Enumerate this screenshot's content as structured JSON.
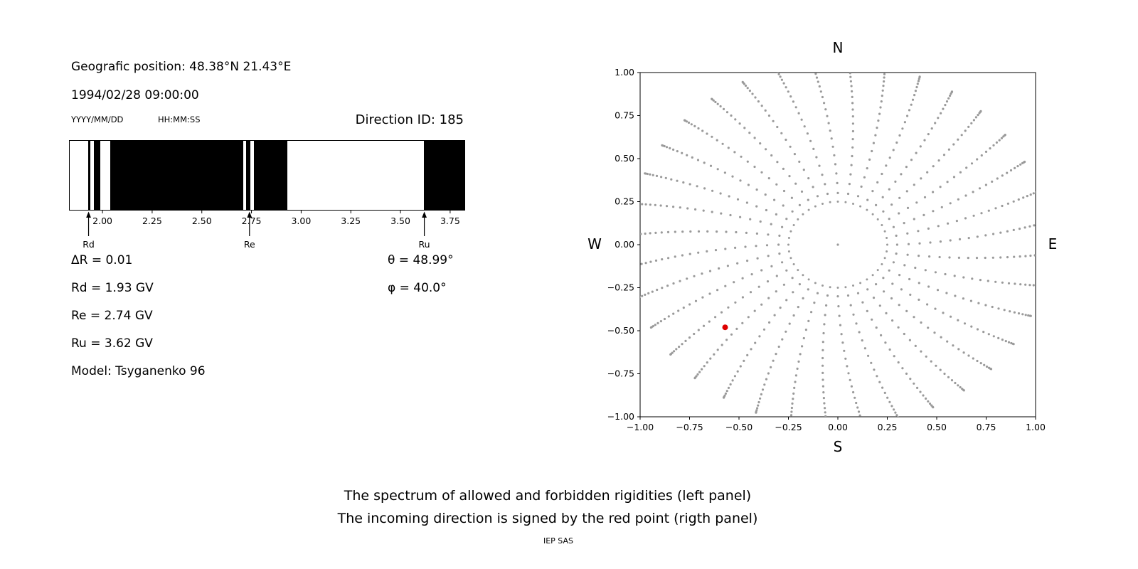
{
  "left_panel": {
    "geo_position": "Geografic position: 48.38°N 21.43°E",
    "datetime": "1994/02/28 09:00:00",
    "date_format_label": "YYYY/MM/DD",
    "time_format_label": "HH:MM:SS",
    "direction_id_label": "Direction ID: 185",
    "delta_r": "ΔR = 0.01",
    "rd": "Rd = 1.93 GV",
    "re": "Re = 2.74 GV",
    "ru": "Ru = 3.62 GV",
    "model": "Model: Tsyganenko 96",
    "theta": "θ = 48.99°",
    "phi": "φ = 40.0°"
  },
  "right_panel": {
    "compass": {
      "north": "N",
      "south": "S",
      "west": "W",
      "east": "E"
    }
  },
  "captions": {
    "line1": "The spectrum of allowed and forbidden rigidities (left panel)",
    "line2": "The incoming direction is signed by the red point (rigth panel)",
    "credit": "IEP SAS"
  },
  "chart_data": [
    {
      "id": "rigidity_spectrum",
      "type": "bar",
      "title": "",
      "xlabel": "",
      "ylabel": "",
      "xlim": [
        1.835,
        3.822
      ],
      "xtick_values": [
        2.0,
        2.25,
        2.5,
        2.75,
        3.0,
        3.25,
        3.5,
        3.75
      ],
      "xtick_labels": [
        "2.00",
        "2.25",
        "2.50",
        "2.75",
        "3.00",
        "3.25",
        "3.50",
        "3.75"
      ],
      "forbidden_bands_gv": [
        [
          1.928,
          1.94
        ],
        [
          1.958,
          1.99
        ],
        [
          2.04,
          2.708
        ],
        [
          2.722,
          2.746
        ],
        [
          2.762,
          2.93
        ],
        [
          3.618,
          3.822
        ]
      ],
      "forbidden_color": "#000000",
      "allowed_color": "#ffffff",
      "cutoff_markers": [
        {
          "label": "Rd",
          "value_gv": 1.93
        },
        {
          "label": "Re",
          "value_gv": 2.74
        },
        {
          "label": "Ru",
          "value_gv": 3.62
        }
      ]
    },
    {
      "id": "incoming_direction_map",
      "type": "scatter",
      "title": "",
      "xlabel": "",
      "ylabel": "",
      "xlim": [
        -1,
        1
      ],
      "ylim": [
        -1,
        1
      ],
      "xtick_values": [
        -1,
        -0.75,
        -0.5,
        -0.25,
        0,
        0.25,
        0.5,
        0.75,
        1
      ],
      "xtick_labels": [
        "−1.00",
        "−0.75",
        "−0.50",
        "−0.25",
        "0.00",
        "0.25",
        "0.50",
        "0.75",
        "1.00"
      ],
      "ytick_values": [
        -1,
        -0.75,
        -0.5,
        -0.25,
        0,
        0.25,
        0.5,
        0.75,
        1
      ],
      "ytick_labels": [
        "−1.00",
        "−0.75",
        "−0.50",
        "−0.25",
        "0.00",
        "0.25",
        "0.50",
        "0.75",
        "1.00"
      ],
      "grid": false,
      "legend": false,
      "dot_color": "#9a9a9a",
      "dot_pattern": {
        "rays": 36,
        "angle_step_deg": 10,
        "dots_per_ray": 23,
        "r_start": 0.3,
        "r_end": 1.06,
        "end_accumulation_exponent": 1.7,
        "twist_deg": 7,
        "inner_ring_radius": 0.25,
        "inner_ring_dots": 40,
        "center_dot": true
      },
      "red_point": {
        "x": -0.57,
        "y": -0.48,
        "color": "#dd0000"
      }
    }
  ]
}
